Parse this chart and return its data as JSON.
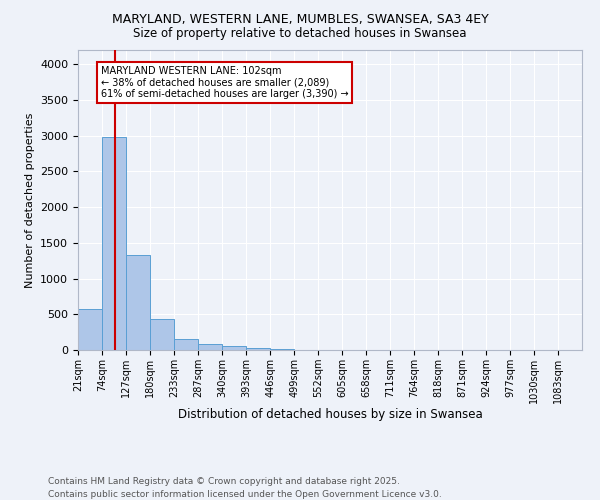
{
  "title_line1": "MARYLAND, WESTERN LANE, MUMBLES, SWANSEA, SA3 4EY",
  "title_line2": "Size of property relative to detached houses in Swansea",
  "xlabel": "Distribution of detached houses by size in Swansea",
  "ylabel": "Number of detached properties",
  "bins": [
    "21sqm",
    "74sqm",
    "127sqm",
    "180sqm",
    "233sqm",
    "287sqm",
    "340sqm",
    "393sqm",
    "446sqm",
    "499sqm",
    "552sqm",
    "605sqm",
    "658sqm",
    "711sqm",
    "764sqm",
    "818sqm",
    "871sqm",
    "924sqm",
    "977sqm",
    "1030sqm",
    "1083sqm"
  ],
  "bin_edges_numeric": [
    21,
    74,
    127,
    180,
    233,
    287,
    340,
    393,
    446,
    499,
    552,
    605,
    658,
    711,
    764,
    818,
    871,
    924,
    977,
    1030,
    1083
  ],
  "bar_heights": [
    580,
    2980,
    1330,
    430,
    160,
    85,
    55,
    30,
    20,
    0,
    0,
    0,
    0,
    0,
    0,
    0,
    0,
    0,
    0,
    0
  ],
  "bar_color": "#aec6e8",
  "bar_edge_color": "#5a9fd4",
  "property_size": 102,
  "vline_color": "#cc0000",
  "annotation_text": "MARYLAND WESTERN LANE: 102sqm\n← 38% of detached houses are smaller (2,089)\n61% of semi-detached houses are larger (3,390) →",
  "annotation_box_color": "#cc0000",
  "annotation_text_color": "#000000",
  "ylim": [
    0,
    4200
  ],
  "yticks": [
    0,
    500,
    1000,
    1500,
    2000,
    2500,
    3000,
    3500,
    4000
  ],
  "bg_color": "#eef2f9",
  "grid_color": "#ffffff",
  "footer_line1": "Contains HM Land Registry data © Crown copyright and database right 2025.",
  "footer_line2": "Contains public sector information licensed under the Open Government Licence v3.0."
}
